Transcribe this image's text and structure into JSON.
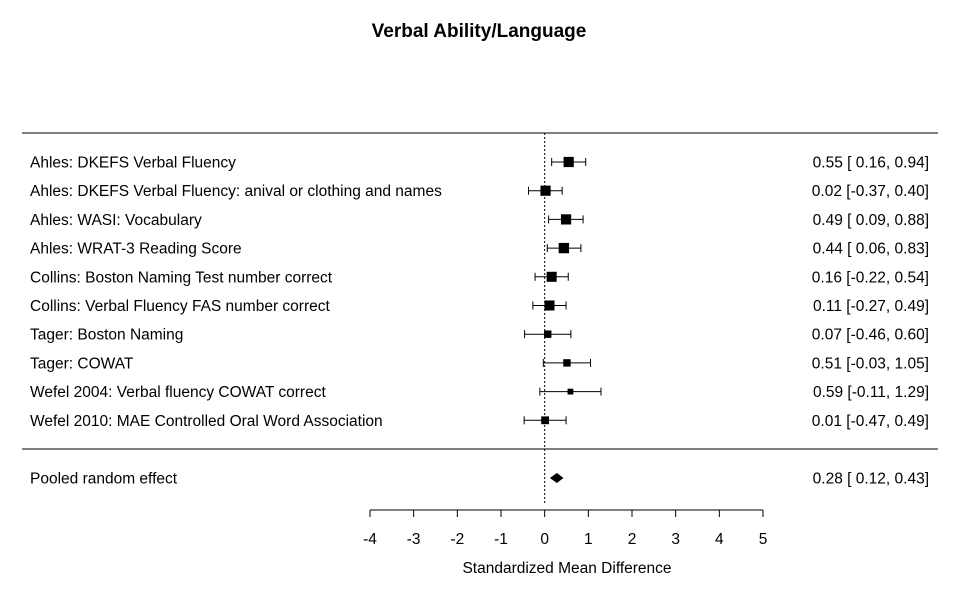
{
  "chart_data": {
    "type": "forest",
    "title": "Verbal Ability/Language",
    "xlabel": "Standardized Mean Difference",
    "xlim": [
      -4,
      5
    ],
    "x_ticks": [
      "-4",
      "-3",
      "-2",
      "-1",
      "0",
      "1",
      "2",
      "3",
      "4",
      "5"
    ],
    "reference_line": 0,
    "studies": [
      {
        "label": "Ahles: DKEFS Verbal Fluency",
        "est": 0.55,
        "lo": 0.16,
        "hi": 0.94,
        "ci_text": "0.55 [ 0.16, 0.94]",
        "weight": 0.9
      },
      {
        "label": "Ahles: DKEFS Verbal Fluency: anival or clothing and names",
        "est": 0.02,
        "lo": -0.37,
        "hi": 0.4,
        "ci_text": "0.02 [-0.37, 0.40]",
        "weight": 0.9
      },
      {
        "label": "Ahles: WASI: Vocabulary",
        "est": 0.49,
        "lo": 0.09,
        "hi": 0.88,
        "ci_text": "0.49 [ 0.09, 0.88]",
        "weight": 0.9
      },
      {
        "label": "Ahles: WRAT-3 Reading Score",
        "est": 0.44,
        "lo": 0.06,
        "hi": 0.83,
        "ci_text": "0.44 [ 0.06, 0.83]",
        "weight": 0.92
      },
      {
        "label": "Collins: Boston Naming Test number correct",
        "est": 0.16,
        "lo": -0.22,
        "hi": 0.54,
        "ci_text": "0.16 [-0.22, 0.54]",
        "weight": 0.88
      },
      {
        "label": "Collins: Verbal Fluency FAS number correct",
        "est": 0.11,
        "lo": -0.27,
        "hi": 0.49,
        "ci_text": "0.11 [-0.27, 0.49]",
        "weight": 0.88
      },
      {
        "label": "Tager: Boston Naming",
        "est": 0.07,
        "lo": -0.46,
        "hi": 0.6,
        "ci_text": "0.07 [-0.46, 0.60]",
        "weight": 0.55
      },
      {
        "label": "Tager: COWAT",
        "est": 0.51,
        "lo": -0.03,
        "hi": 1.05,
        "ci_text": "0.51 [-0.03, 1.05]",
        "weight": 0.55
      },
      {
        "label": "Wefel 2004: Verbal fluency COWAT correct",
        "est": 0.59,
        "lo": -0.11,
        "hi": 1.29,
        "ci_text": "0.59 [-0.11, 1.29]",
        "weight": 0.35
      },
      {
        "label": "Wefel 2010: MAE Controlled Oral Word Association",
        "est": 0.01,
        "lo": -0.47,
        "hi": 0.49,
        "ci_text": "0.01 [-0.47, 0.49]",
        "weight": 0.6
      }
    ],
    "pooled": {
      "label": "Pooled random effect",
      "est": 0.28,
      "lo": 0.12,
      "hi": 0.43,
      "ci_text": "0.28 [ 0.12, 0.43]"
    }
  }
}
